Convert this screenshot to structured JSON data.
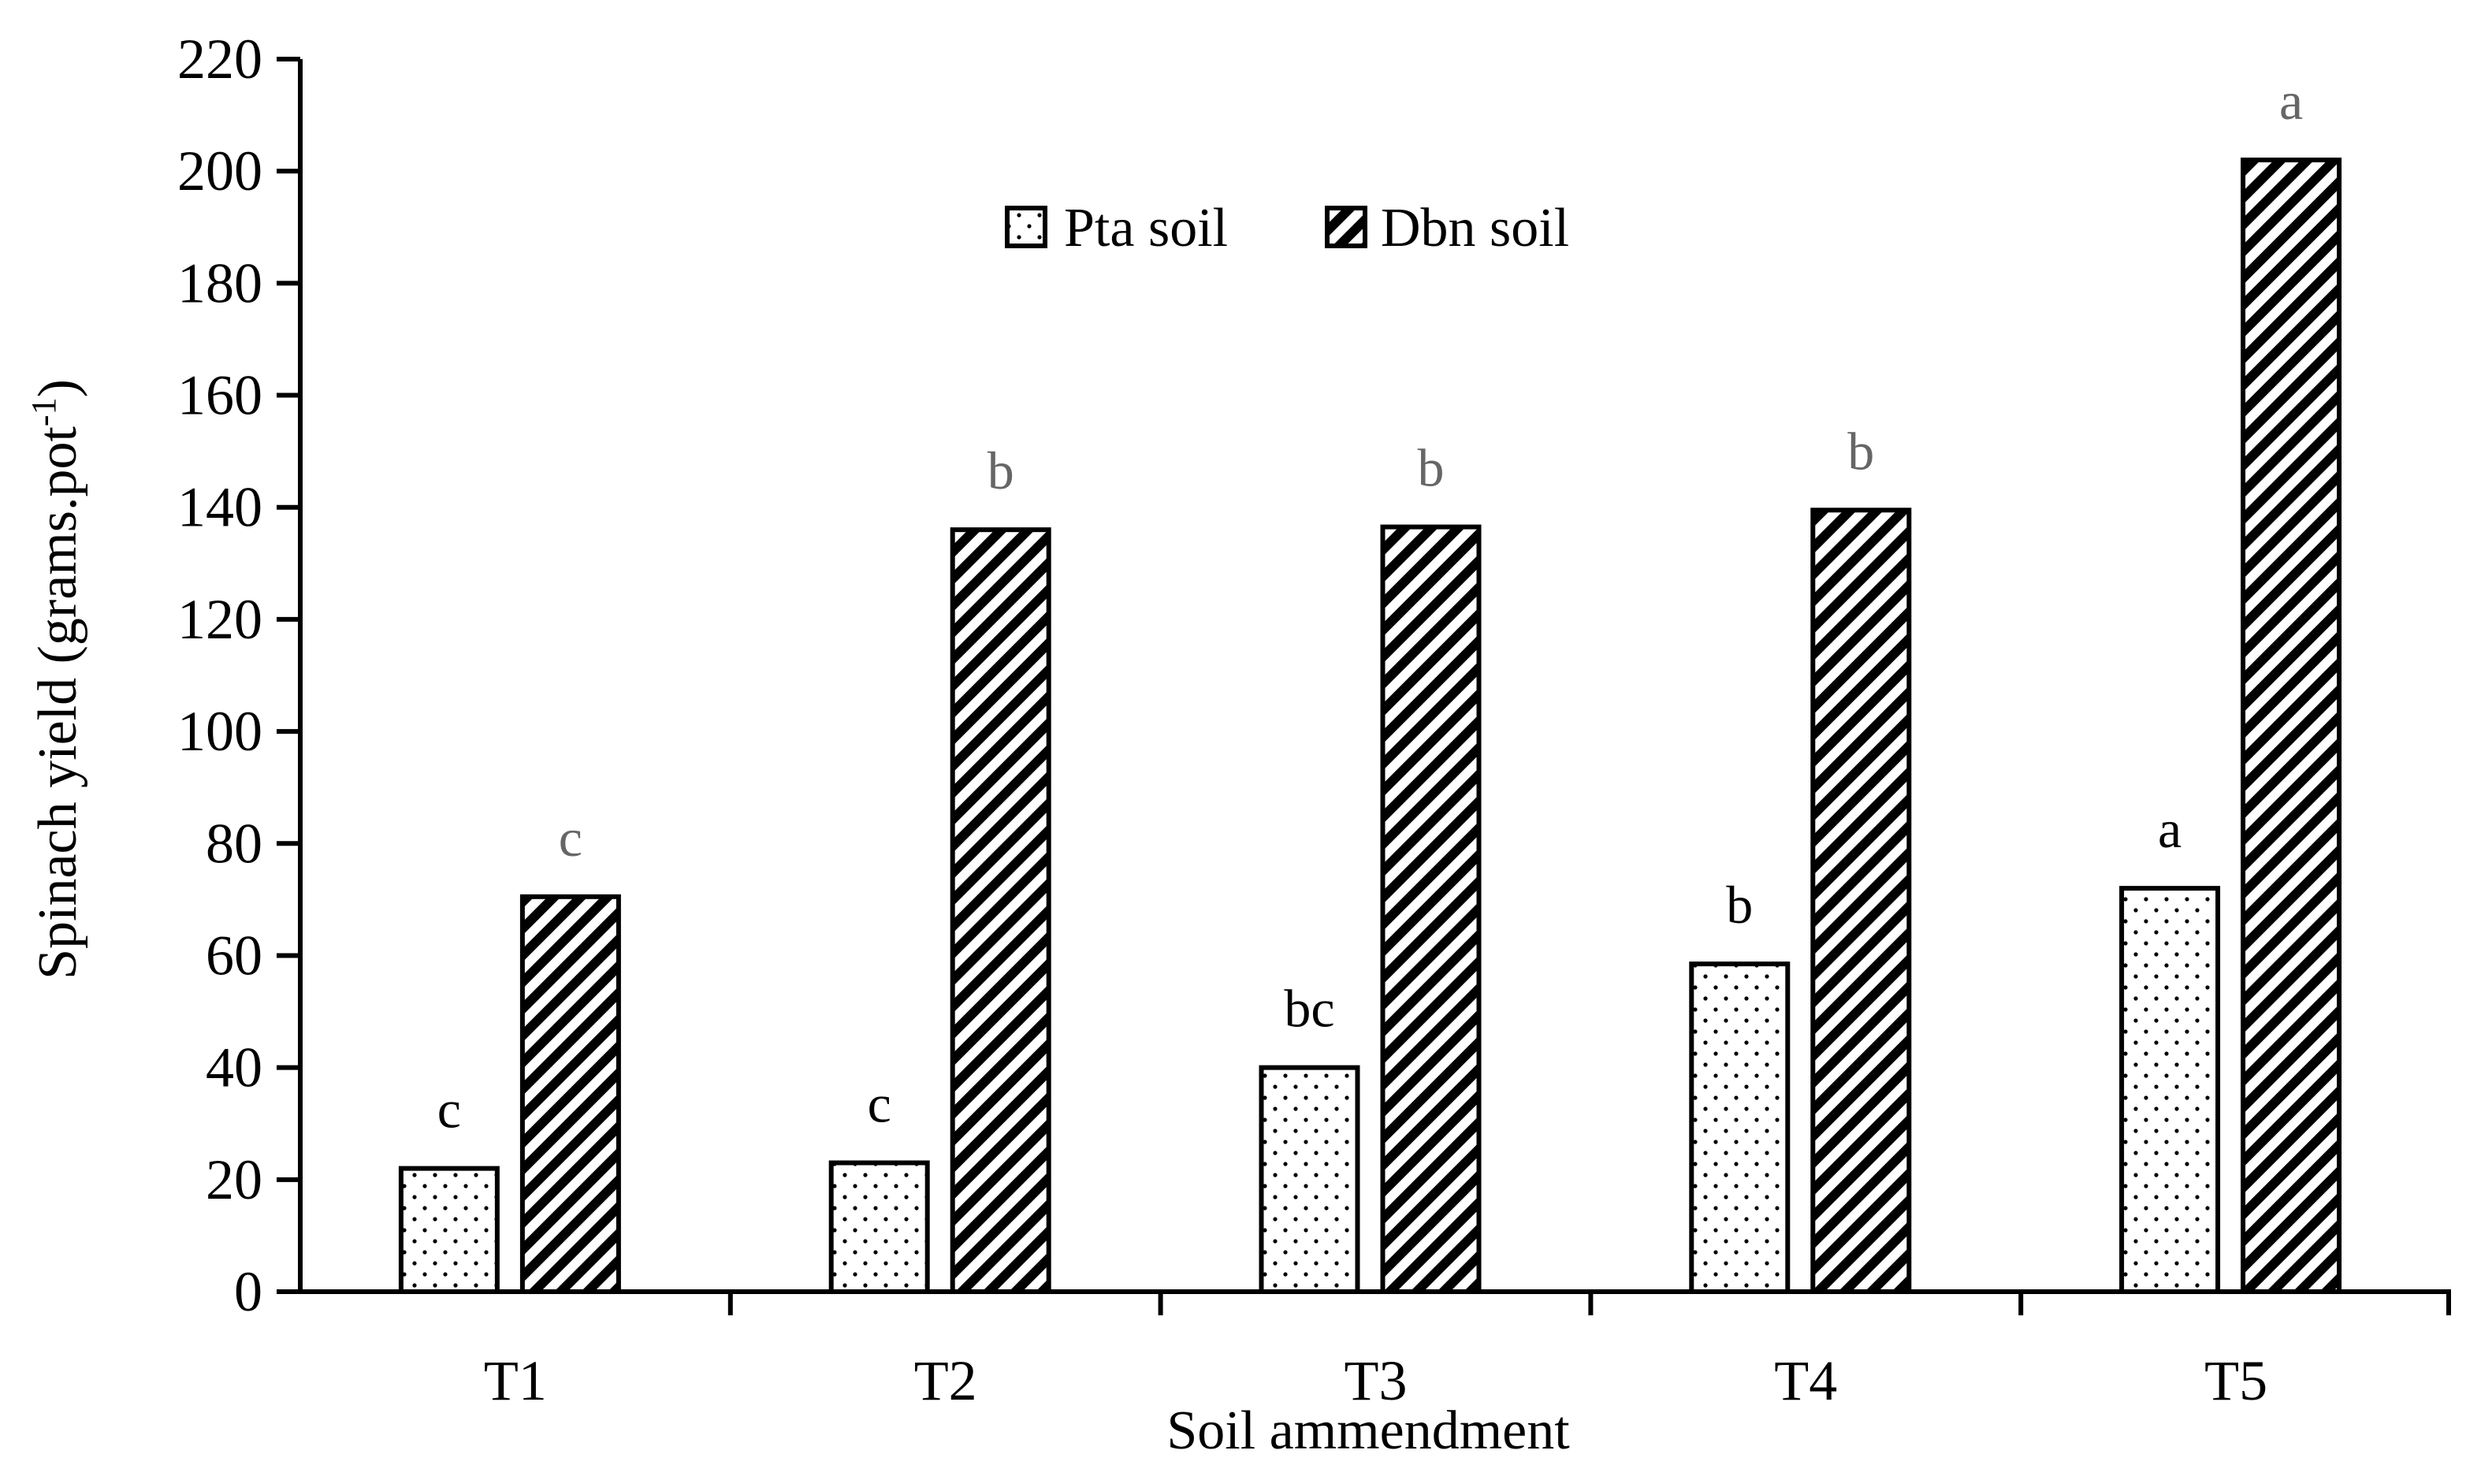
{
  "chart_data": {
    "type": "bar",
    "xlabel": "Soil ammendment",
    "ylabel": "Spinach yield (grams.pot",
    "ylabel_sup": "-1",
    "ylabel_close": ")",
    "ylim": [
      0,
      220
    ],
    "yticks": [
      0,
      20,
      40,
      60,
      80,
      100,
      120,
      140,
      160,
      180,
      200,
      220
    ],
    "categories": [
      "T1",
      "T2",
      "T3",
      "T4",
      "T5"
    ],
    "legend_position": "top-center",
    "grid": false,
    "series": [
      {
        "name": "Pta soil",
        "pattern": "dots",
        "values": [
          22,
          23,
          40,
          58.5,
          72
        ],
        "significance": [
          "c",
          "c",
          "bc",
          "b",
          "a"
        ],
        "significance_color": "#000000"
      },
      {
        "name": "Dbn soil",
        "pattern": "diagonal-hatch",
        "values": [
          70.5,
          136,
          136.5,
          139.5,
          202
        ],
        "significance": [
          "c",
          "b",
          "b",
          "b",
          "a"
        ],
        "significance_color": "#666666"
      }
    ]
  }
}
